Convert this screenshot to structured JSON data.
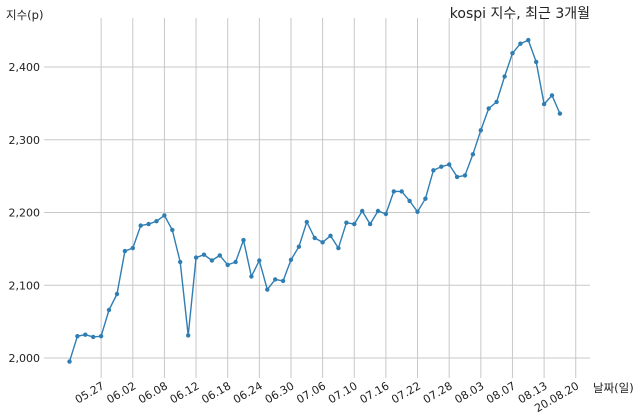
{
  "chart_data": {
    "type": "line",
    "title": "kospi 지수, 최근 3개월",
    "xlabel": "날짜(일)",
    "ylabel": "지수(p)",
    "ylim": [
      1985,
      2450
    ],
    "yticks": [
      2000,
      2100,
      2200,
      2300,
      2400
    ],
    "ytick_labels": [
      "2,000",
      "2,100",
      "2,200",
      "2,300",
      "2,400"
    ],
    "xticks": [
      {
        "label": "05.27",
        "idx": 4
      },
      {
        "label": "06.02",
        "idx": 8
      },
      {
        "label": "06.08",
        "idx": 12
      },
      {
        "label": "06.12",
        "idx": 16
      },
      {
        "label": "06.18",
        "idx": 20
      },
      {
        "label": "06.24",
        "idx": 24
      },
      {
        "label": "06.30",
        "idx": 28
      },
      {
        "label": "07.06",
        "idx": 32
      },
      {
        "label": "07.10",
        "idx": 36
      },
      {
        "label": "07.16",
        "idx": 40
      },
      {
        "label": "07.22",
        "idx": 44
      },
      {
        "label": "07.28",
        "idx": 48
      },
      {
        "label": "08.03",
        "idx": 52
      },
      {
        "label": "08.07",
        "idx": 56
      },
      {
        "label": "08.13",
        "idx": 60
      },
      {
        "label": "20.08.20",
        "idx": 64
      }
    ],
    "grid": true,
    "color": "#2e7eb3",
    "values": [
      1995,
      2030,
      2032,
      2029,
      2030,
      2066,
      2088,
      2147,
      2151,
      2182,
      2184,
      2188,
      2196,
      2176,
      2132,
      2031,
      2138,
      2142,
      2134,
      2141,
      2128,
      2132,
      2162,
      2112,
      2134,
      2094,
      2108,
      2106,
      2135,
      2153,
      2187,
      2165,
      2159,
      2168,
      2151,
      2186,
      2184,
      2202,
      2184,
      2202,
      2198,
      2229,
      2229,
      2216,
      2201,
      2219,
      2258,
      2263,
      2266,
      2249,
      2251,
      2280,
      2313,
      2343,
      2352,
      2387,
      2419,
      2432,
      2437,
      2407,
      2349,
      2361,
      2336
    ]
  }
}
